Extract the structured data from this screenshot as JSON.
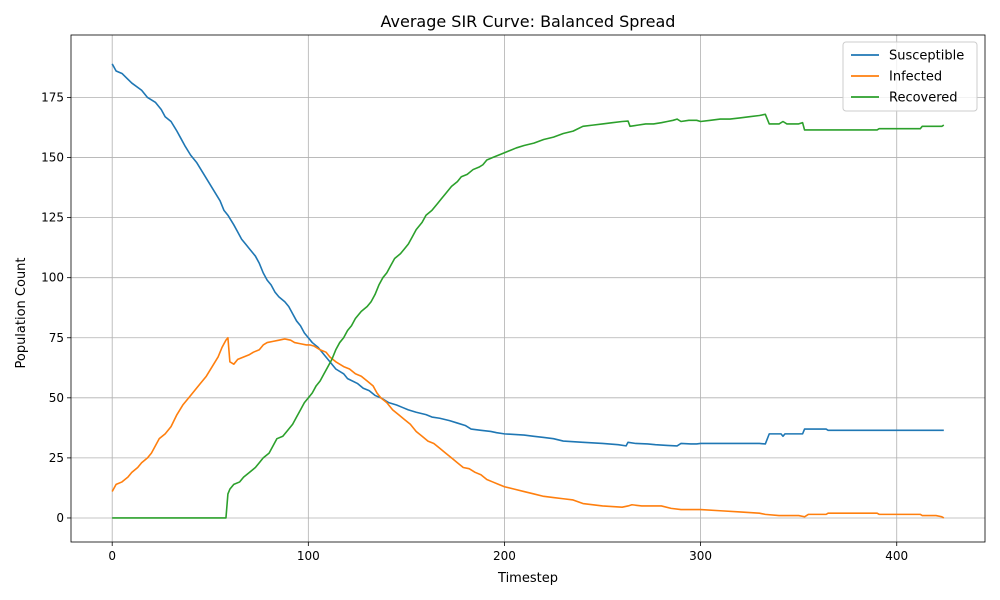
{
  "chart_data": {
    "type": "line",
    "title": "Average SIR Curve: Balanced Spread",
    "xlabel": "Timestep",
    "ylabel": "Population Count",
    "xlim": [
      -21,
      445
    ],
    "ylim": [
      -10,
      201
    ],
    "xticks": [
      0,
      100,
      200,
      300,
      400
    ],
    "yticks": [
      0,
      25,
      50,
      75,
      100,
      125,
      150,
      175
    ],
    "grid": true,
    "legend_position": "top-right",
    "series": [
      {
        "name": "Susceptible",
        "color": "#1f77b4",
        "points": [
          [
            0,
            189
          ],
          [
            2,
            186
          ],
          [
            5,
            185
          ],
          [
            10,
            181
          ],
          [
            15,
            178
          ],
          [
            18,
            175
          ],
          [
            22,
            173
          ],
          [
            25,
            170
          ],
          [
            27,
            167
          ],
          [
            30,
            165
          ],
          [
            33,
            161
          ],
          [
            35,
            158
          ],
          [
            37,
            155
          ],
          [
            40,
            151
          ],
          [
            43,
            148
          ],
          [
            46,
            144
          ],
          [
            49,
            140
          ],
          [
            52,
            136
          ],
          [
            55,
            132
          ],
          [
            57,
            128
          ],
          [
            59,
            126
          ],
          [
            62,
            122
          ],
          [
            64,
            119
          ],
          [
            66,
            116
          ],
          [
            68,
            114
          ],
          [
            70,
            112
          ],
          [
            73,
            109
          ],
          [
            75,
            106
          ],
          [
            77,
            102
          ],
          [
            79,
            99
          ],
          [
            81,
            97
          ],
          [
            83,
            94
          ],
          [
            85,
            92
          ],
          [
            88,
            90
          ],
          [
            90,
            88
          ],
          [
            92,
            85
          ],
          [
            94,
            82
          ],
          [
            96,
            80
          ],
          [
            98,
            77
          ],
          [
            100,
            75
          ],
          [
            102,
            73
          ],
          [
            105,
            71
          ],
          [
            108,
            68
          ],
          [
            111,
            65
          ],
          [
            114,
            62
          ],
          [
            118,
            60
          ],
          [
            120,
            58
          ],
          [
            125,
            56
          ],
          [
            128,
            54
          ],
          [
            131,
            53
          ],
          [
            134,
            51
          ],
          [
            137,
            50
          ],
          [
            141,
            48
          ],
          [
            145,
            47
          ],
          [
            148,
            46
          ],
          [
            151,
            45
          ],
          [
            155,
            44
          ],
          [
            160,
            43
          ],
          [
            163,
            42
          ],
          [
            167,
            41.5
          ],
          [
            172,
            40.5
          ],
          [
            176,
            39.5
          ],
          [
            180,
            38.5
          ],
          [
            183,
            37
          ],
          [
            188,
            36.5
          ],
          [
            193,
            36
          ],
          [
            196,
            35.5
          ],
          [
            200,
            35
          ],
          [
            210,
            34.5
          ],
          [
            215,
            34
          ],
          [
            220,
            33.5
          ],
          [
            225,
            33
          ],
          [
            230,
            32
          ],
          [
            240,
            31.5
          ],
          [
            250,
            31
          ],
          [
            258,
            30.5
          ],
          [
            262,
            30
          ],
          [
            263,
            31.5
          ],
          [
            267,
            31
          ],
          [
            273,
            30.8
          ],
          [
            277,
            30.5
          ],
          [
            283,
            30.2
          ],
          [
            288,
            30
          ],
          [
            290,
            31
          ],
          [
            295,
            30.8
          ],
          [
            298,
            30.8
          ],
          [
            300,
            31
          ],
          [
            310,
            31
          ],
          [
            320,
            31
          ],
          [
            330,
            31
          ],
          [
            333,
            30.8
          ],
          [
            335,
            35
          ],
          [
            341,
            35
          ],
          [
            342,
            34
          ],
          [
            343,
            35
          ],
          [
            350,
            35
          ],
          [
            352,
            35
          ],
          [
            353,
            37
          ],
          [
            364,
            37
          ],
          [
            365,
            36.5
          ],
          [
            380,
            36.5
          ],
          [
            400,
            36.5
          ],
          [
            424,
            36.5
          ]
        ]
      },
      {
        "name": "Infected",
        "color": "#ff7f0e",
        "points": [
          [
            0,
            11
          ],
          [
            2,
            14
          ],
          [
            5,
            15
          ],
          [
            8,
            17
          ],
          [
            10,
            19
          ],
          [
            13,
            21
          ],
          [
            15,
            23
          ],
          [
            18,
            25
          ],
          [
            20,
            27
          ],
          [
            22,
            30
          ],
          [
            24,
            33
          ],
          [
            27,
            35
          ],
          [
            30,
            38
          ],
          [
            33,
            43
          ],
          [
            36,
            47
          ],
          [
            39,
            50
          ],
          [
            42,
            53
          ],
          [
            45,
            56
          ],
          [
            48,
            59
          ],
          [
            51,
            63
          ],
          [
            54,
            67
          ],
          [
            56,
            71
          ],
          [
            58,
            74
          ],
          [
            59,
            75
          ],
          [
            60,
            65
          ],
          [
            62,
            64
          ],
          [
            64,
            66
          ],
          [
            67,
            67
          ],
          [
            70,
            68
          ],
          [
            72,
            69
          ],
          [
            75,
            70
          ],
          [
            77,
            72
          ],
          [
            79,
            73
          ],
          [
            82,
            73.5
          ],
          [
            85,
            74
          ],
          [
            88,
            74.5
          ],
          [
            91,
            74
          ],
          [
            93,
            73
          ],
          [
            96,
            72.5
          ],
          [
            99,
            72
          ],
          [
            101,
            72
          ],
          [
            103,
            71.5
          ],
          [
            106,
            70
          ],
          [
            109,
            69
          ],
          [
            111,
            67
          ],
          [
            114,
            65
          ],
          [
            118,
            63
          ],
          [
            121,
            62
          ],
          [
            124,
            60
          ],
          [
            127,
            59
          ],
          [
            130,
            57
          ],
          [
            133,
            55
          ],
          [
            135,
            52
          ],
          [
            137,
            50
          ],
          [
            140,
            48
          ],
          [
            143,
            45
          ],
          [
            146,
            43
          ],
          [
            149,
            41
          ],
          [
            152,
            39
          ],
          [
            155,
            36
          ],
          [
            158,
            34
          ],
          [
            161,
            32
          ],
          [
            164,
            31
          ],
          [
            167,
            29
          ],
          [
            170,
            27
          ],
          [
            173,
            25
          ],
          [
            176,
            23
          ],
          [
            179,
            21
          ],
          [
            182,
            20.5
          ],
          [
            185,
            19
          ],
          [
            188,
            18
          ],
          [
            191,
            16
          ],
          [
            194,
            15
          ],
          [
            197,
            14
          ],
          [
            200,
            13
          ],
          [
            205,
            12
          ],
          [
            210,
            11
          ],
          [
            215,
            10
          ],
          [
            220,
            9
          ],
          [
            225,
            8.5
          ],
          [
            230,
            8
          ],
          [
            235,
            7.5
          ],
          [
            240,
            6
          ],
          [
            250,
            5
          ],
          [
            260,
            4.5
          ],
          [
            263,
            5
          ],
          [
            265,
            5.5
          ],
          [
            270,
            5
          ],
          [
            275,
            5
          ],
          [
            280,
            5
          ],
          [
            285,
            4
          ],
          [
            290,
            3.5
          ],
          [
            300,
            3.5
          ],
          [
            310,
            3
          ],
          [
            320,
            2.5
          ],
          [
            330,
            2
          ],
          [
            333,
            1.5
          ],
          [
            340,
            1
          ],
          [
            350,
            1
          ],
          [
            353,
            0.5
          ],
          [
            355,
            1.5
          ],
          [
            364,
            1.5
          ],
          [
            365,
            2
          ],
          [
            380,
            2
          ],
          [
            390,
            2
          ],
          [
            391,
            1.5
          ],
          [
            400,
            1.5
          ],
          [
            412,
            1.5
          ],
          [
            413,
            1
          ],
          [
            420,
            1
          ],
          [
            423,
            0.5
          ],
          [
            424,
            0
          ]
        ]
      },
      {
        "name": "Recovered",
        "color": "#2ca02c",
        "points": [
          [
            0,
            0
          ],
          [
            20,
            0
          ],
          [
            40,
            0
          ],
          [
            58,
            0
          ],
          [
            59,
            10
          ],
          [
            60,
            12
          ],
          [
            62,
            14
          ],
          [
            65,
            15
          ],
          [
            67,
            17
          ],
          [
            70,
            19
          ],
          [
            73,
            21
          ],
          [
            75,
            23
          ],
          [
            77,
            25
          ],
          [
            80,
            27
          ],
          [
            82,
            30
          ],
          [
            84,
            33
          ],
          [
            87,
            34
          ],
          [
            89,
            36
          ],
          [
            92,
            39
          ],
          [
            94,
            42
          ],
          [
            96,
            45
          ],
          [
            98,
            48
          ],
          [
            100,
            50
          ],
          [
            102,
            52
          ],
          [
            104,
            55
          ],
          [
            106,
            57
          ],
          [
            108,
            60
          ],
          [
            110,
            63
          ],
          [
            112,
            66
          ],
          [
            114,
            70
          ],
          [
            116,
            73
          ],
          [
            118,
            75
          ],
          [
            120,
            78
          ],
          [
            122,
            80
          ],
          [
            124,
            83
          ],
          [
            127,
            86
          ],
          [
            130,
            88
          ],
          [
            132,
            90
          ],
          [
            134,
            93
          ],
          [
            136,
            97
          ],
          [
            138,
            100
          ],
          [
            140,
            102
          ],
          [
            142,
            105
          ],
          [
            144,
            108
          ],
          [
            147,
            110
          ],
          [
            149,
            112
          ],
          [
            151,
            114
          ],
          [
            153,
            117
          ],
          [
            155,
            120
          ],
          [
            158,
            123
          ],
          [
            160,
            126
          ],
          [
            163,
            128
          ],
          [
            166,
            131
          ],
          [
            168,
            133
          ],
          [
            170,
            135
          ],
          [
            173,
            138
          ],
          [
            176,
            140
          ],
          [
            178,
            142
          ],
          [
            181,
            143
          ],
          [
            184,
            145
          ],
          [
            187,
            146
          ],
          [
            189,
            147
          ],
          [
            191,
            149
          ],
          [
            194,
            150
          ],
          [
            197,
            151
          ],
          [
            200,
            152
          ],
          [
            203,
            153
          ],
          [
            206,
            154
          ],
          [
            210,
            155
          ],
          [
            215,
            156
          ],
          [
            220,
            157.5
          ],
          [
            225,
            158.5
          ],
          [
            230,
            160
          ],
          [
            235,
            161
          ],
          [
            240,
            163
          ],
          [
            245,
            163.5
          ],
          [
            250,
            164
          ],
          [
            255,
            164.5
          ],
          [
            260,
            165
          ],
          [
            263,
            165.2
          ],
          [
            264,
            163
          ],
          [
            268,
            163.5
          ],
          [
            272,
            164
          ],
          [
            276,
            164
          ],
          [
            280,
            164.5
          ],
          [
            283,
            165
          ],
          [
            286,
            165.5
          ],
          [
            288,
            166
          ],
          [
            290,
            165
          ],
          [
            294,
            165.5
          ],
          [
            298,
            165.5
          ],
          [
            300,
            165
          ],
          [
            305,
            165.5
          ],
          [
            310,
            166
          ],
          [
            315,
            166
          ],
          [
            320,
            166.5
          ],
          [
            325,
            167
          ],
          [
            330,
            167.5
          ],
          [
            333,
            168
          ],
          [
            335,
            164
          ],
          [
            340,
            164
          ],
          [
            342,
            165
          ],
          [
            344,
            164
          ],
          [
            350,
            164
          ],
          [
            352,
            164.5
          ],
          [
            353,
            161.5
          ],
          [
            360,
            161.5
          ],
          [
            380,
            161.5
          ],
          [
            390,
            161.5
          ],
          [
            391,
            162
          ],
          [
            400,
            162
          ],
          [
            412,
            162
          ],
          [
            413,
            163
          ],
          [
            420,
            163
          ],
          [
            423,
            163
          ],
          [
            424,
            163.5
          ]
        ]
      }
    ]
  }
}
